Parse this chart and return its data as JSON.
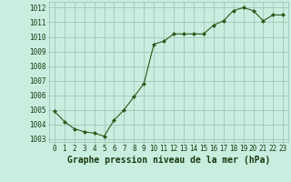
{
  "x": [
    0,
    1,
    2,
    3,
    4,
    5,
    6,
    7,
    8,
    9,
    10,
    11,
    12,
    13,
    14,
    15,
    16,
    17,
    18,
    19,
    20,
    21,
    22,
    23
  ],
  "y": [
    1004.9,
    1004.2,
    1003.7,
    1003.5,
    1003.4,
    1003.2,
    1004.3,
    1005.0,
    1005.9,
    1006.8,
    1009.5,
    1009.7,
    1010.2,
    1010.2,
    1010.2,
    1010.2,
    1010.8,
    1011.1,
    1011.8,
    1012.0,
    1011.8,
    1011.1,
    1011.5,
    1011.5
  ],
  "ylim_min": 1002.8,
  "ylim_max": 1012.4,
  "yticks": [
    1003,
    1004,
    1005,
    1006,
    1007,
    1008,
    1009,
    1010,
    1011,
    1012
  ],
  "xticks": [
    0,
    1,
    2,
    3,
    4,
    5,
    6,
    7,
    8,
    9,
    10,
    11,
    12,
    13,
    14,
    15,
    16,
    17,
    18,
    19,
    20,
    21,
    22,
    23
  ],
  "xlabel": "Graphe pression niveau de la mer (hPa)",
  "line_color": "#2d5a1b",
  "marker": "D",
  "marker_size": 2.0,
  "bg_color": "#c8eee0",
  "grid_color": "#9abfb0",
  "tick_label_color": "#1a3a10",
  "xlabel_color": "#1a3a10",
  "tick_fontsize": 5.5,
  "xlabel_fontsize": 7.0
}
